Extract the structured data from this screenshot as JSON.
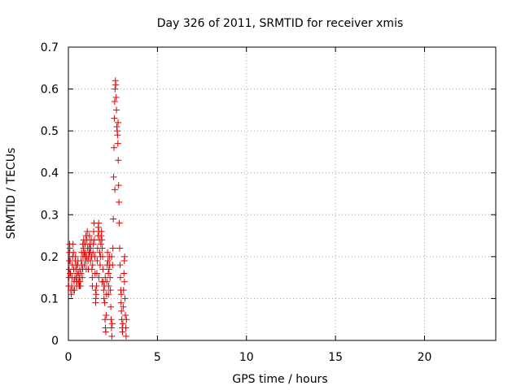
{
  "chart_data": {
    "type": "scatter",
    "title": "Day 326 of 2011, SRMTID for receiver xmis",
    "xlabel": "GPS time / hours",
    "ylabel": "SRMTID / TECUs",
    "xlim": [
      0,
      24
    ],
    "ylim": [
      0,
      0.7
    ],
    "xticks": [
      0,
      5,
      10,
      15,
      20
    ],
    "yticks": [
      0,
      0.1,
      0.2,
      0.3,
      0.4,
      0.5,
      0.6,
      0.7
    ],
    "xtick_labels": [
      "0",
      "5",
      "10",
      "15",
      "20"
    ],
    "ytick_labels": [
      "0",
      "0.1",
      "0.2",
      "0.3",
      "0.4",
      "0.5",
      "0.6",
      "0.7"
    ],
    "grid": true,
    "marker": "+",
    "series": [
      {
        "name": "SRMTID",
        "color": "#e00000",
        "points": [
          [
            0.02,
            0.13
          ],
          [
            0.03,
            0.15
          ],
          [
            0.04,
            0.17
          ],
          [
            0.05,
            0.19
          ],
          [
            0.06,
            0.21
          ],
          [
            0.07,
            0.23
          ],
          [
            0.08,
            0.22
          ],
          [
            0.1,
            0.19
          ],
          [
            0.12,
            0.16
          ],
          [
            0.14,
            0.12
          ],
          [
            0.16,
            0.11
          ],
          [
            0.18,
            0.13
          ],
          [
            0.2,
            0.15
          ],
          [
            0.22,
            0.18
          ],
          [
            0.24,
            0.2
          ],
          [
            0.26,
            0.23
          ],
          [
            0.28,
            0.21
          ],
          [
            0.3,
            0.17
          ],
          [
            0.32,
            0.14
          ],
          [
            0.34,
            0.12
          ],
          [
            0.36,
            0.15
          ],
          [
            0.38,
            0.19
          ],
          [
            0.4,
            0.2
          ],
          [
            0.42,
            0.17
          ],
          [
            0.44,
            0.15
          ],
          [
            0.46,
            0.13
          ],
          [
            0.48,
            0.14
          ],
          [
            0.5,
            0.16
          ],
          [
            0.52,
            0.18
          ],
          [
            0.54,
            0.19
          ],
          [
            0.56,
            0.16
          ],
          [
            0.58,
            0.14
          ],
          [
            0.6,
            0.13
          ],
          [
            0.62,
            0.15
          ],
          [
            0.64,
            0.17
          ],
          [
            0.66,
            0.14
          ],
          [
            0.68,
            0.13
          ],
          [
            0.7,
            0.16
          ],
          [
            0.72,
            0.19
          ],
          [
            0.74,
            0.21
          ],
          [
            0.76,
            0.18
          ],
          [
            0.78,
            0.15
          ],
          [
            0.8,
            0.17
          ],
          [
            0.82,
            0.2
          ],
          [
            0.84,
            0.22
          ],
          [
            0.86,
            0.24
          ],
          [
            0.88,
            0.21
          ],
          [
            0.9,
            0.18
          ],
          [
            0.92,
            0.2
          ],
          [
            0.94,
            0.23
          ],
          [
            0.96,
            0.21
          ],
          [
            0.98,
            0.19
          ],
          [
            1.0,
            0.17
          ],
          [
            1.02,
            0.2
          ],
          [
            1.04,
            0.24
          ],
          [
            1.06,
            0.26
          ],
          [
            1.08,
            0.22
          ],
          [
            1.1,
            0.19
          ],
          [
            1.12,
            0.17
          ],
          [
            1.14,
            0.2
          ],
          [
            1.16,
            0.22
          ],
          [
            1.18,
            0.25
          ],
          [
            1.2,
            0.23
          ],
          [
            1.22,
            0.21
          ],
          [
            1.24,
            0.19
          ],
          [
            1.26,
            0.22
          ],
          [
            1.28,
            0.24
          ],
          [
            1.3,
            0.2
          ],
          [
            1.32,
            0.17
          ],
          [
            1.34,
            0.15
          ],
          [
            1.36,
            0.18
          ],
          [
            1.38,
            0.21
          ],
          [
            1.4,
            0.23
          ],
          [
            1.42,
            0.26
          ],
          [
            1.44,
            0.28
          ],
          [
            1.46,
            0.24
          ],
          [
            1.48,
            0.2
          ],
          [
            1.5,
            0.16
          ],
          [
            1.52,
            0.12
          ],
          [
            1.54,
            0.1
          ],
          [
            1.56,
            0.11
          ],
          [
            1.58,
            0.13
          ],
          [
            1.6,
            0.16
          ],
          [
            1.62,
            0.19
          ],
          [
            1.64,
            0.22
          ],
          [
            1.66,
            0.25
          ],
          [
            1.68,
            0.27
          ],
          [
            1.7,
            0.28
          ],
          [
            1.72,
            0.26
          ],
          [
            1.74,
            0.24
          ],
          [
            1.76,
            0.21
          ],
          [
            1.78,
            0.18
          ],
          [
            1.8,
            0.2
          ],
          [
            1.82,
            0.23
          ],
          [
            1.84,
            0.25
          ],
          [
            1.86,
            0.26
          ],
          [
            1.88,
            0.24
          ],
          [
            1.9,
            0.22
          ],
          [
            1.92,
            0.2
          ],
          [
            1.94,
            0.17
          ],
          [
            1.96,
            0.14
          ],
          [
            1.98,
            0.12
          ],
          [
            2.0,
            0.1
          ],
          [
            2.02,
            0.13
          ],
          [
            2.04,
            0.09
          ],
          [
            2.06,
            0.05
          ],
          [
            2.08,
            0.03
          ],
          [
            2.1,
            0.02
          ],
          [
            2.12,
            0.06
          ],
          [
            2.14,
            0.11
          ],
          [
            2.16,
            0.14
          ],
          [
            2.18,
            0.18
          ],
          [
            2.2,
            0.21
          ],
          [
            2.22,
            0.19
          ],
          [
            2.24,
            0.16
          ],
          [
            2.26,
            0.13
          ],
          [
            2.28,
            0.17
          ],
          [
            2.3,
            0.2
          ],
          [
            2.32,
            0.18
          ],
          [
            2.34,
            0.15
          ],
          [
            2.36,
            0.12
          ],
          [
            2.38,
            0.08
          ],
          [
            2.4,
            0.05
          ],
          [
            2.42,
            0.03
          ],
          [
            2.44,
            0.01
          ],
          [
            2.46,
            0.04
          ],
          [
            2.48,
            0.18
          ],
          [
            2.5,
            0.22
          ],
          [
            2.52,
            0.29
          ],
          [
            2.54,
            0.39
          ],
          [
            2.56,
            0.46
          ],
          [
            2.58,
            0.53
          ],
          [
            2.6,
            0.57
          ],
          [
            2.62,
            0.6
          ],
          [
            2.64,
            0.62
          ],
          [
            2.66,
            0.61
          ],
          [
            2.68,
            0.58
          ],
          [
            2.7,
            0.55
          ],
          [
            2.72,
            0.51
          ],
          [
            2.74,
            0.5
          ],
          [
            2.76,
            0.49
          ],
          [
            2.78,
            0.47
          ],
          [
            2.8,
            0.43
          ],
          [
            2.82,
            0.37
          ],
          [
            2.84,
            0.33
          ],
          [
            2.86,
            0.28
          ],
          [
            2.88,
            0.22
          ],
          [
            2.9,
            0.18
          ],
          [
            2.92,
            0.15
          ],
          [
            2.94,
            0.12
          ],
          [
            2.96,
            0.09
          ],
          [
            2.98,
            0.07
          ],
          [
            3.0,
            0.05
          ],
          [
            3.02,
            0.03
          ],
          [
            3.04,
            0.02
          ],
          [
            3.06,
            0.04
          ],
          [
            3.08,
            0.08
          ],
          [
            3.1,
            0.12
          ],
          [
            3.12,
            0.16
          ],
          [
            3.14,
            0.19
          ],
          [
            3.16,
            0.2
          ],
          [
            3.18,
            0.1
          ],
          [
            3.2,
            0.06
          ],
          [
            3.22,
            0.03
          ],
          [
            3.24,
            0.01
          ],
          [
            3.26,
            0.05
          ],
          [
            0.09,
            0.16
          ],
          [
            0.27,
            0.12
          ],
          [
            0.45,
            0.18
          ],
          [
            0.63,
            0.13
          ],
          [
            0.81,
            0.23
          ],
          [
            0.99,
            0.25
          ],
          [
            1.17,
            0.21
          ],
          [
            1.35,
            0.13
          ],
          [
            1.53,
            0.09
          ],
          [
            1.71,
            0.15
          ],
          [
            1.89,
            0.14
          ],
          [
            2.07,
            0.15
          ],
          [
            2.25,
            0.11
          ],
          [
            2.43,
            0.2
          ],
          [
            2.61,
            0.36
          ],
          [
            2.79,
            0.52
          ],
          [
            2.97,
            0.11
          ],
          [
            3.15,
            0.14
          ]
        ]
      }
    ]
  }
}
